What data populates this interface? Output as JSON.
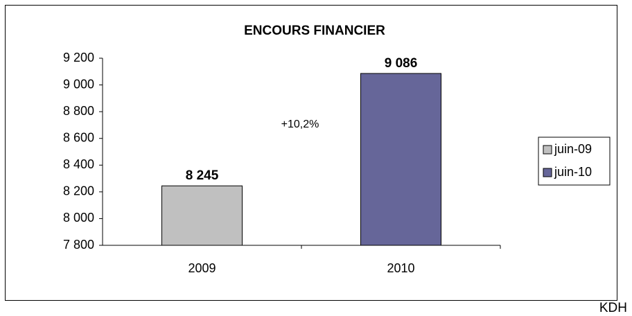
{
  "chart_data": {
    "type": "bar",
    "title": "ENCOURS FINANCIER",
    "categories": [
      "2009",
      "2010"
    ],
    "series": [
      {
        "name": "juin-09",
        "color": "#c0c0c0",
        "values": [
          8245,
          null
        ],
        "value_labels": [
          "8 245",
          null
        ]
      },
      {
        "name": "juin-10",
        "color": "#666699",
        "values": [
          null,
          9086
        ],
        "value_labels": [
          null,
          "9 086"
        ]
      }
    ],
    "ylim": [
      7800,
      9200
    ],
    "yticks": [
      {
        "value": 7800,
        "label": "7 800"
      },
      {
        "value": 8000,
        "label": "8 000"
      },
      {
        "value": 8200,
        "label": "8 200"
      },
      {
        "value": 8400,
        "label": "8 400"
      },
      {
        "value": 8600,
        "label": "8 600"
      },
      {
        "value": 8800,
        "label": "8 800"
      },
      {
        "value": 9000,
        "label": "9 000"
      },
      {
        "value": 9200,
        "label": "9 200"
      }
    ],
    "grid": false,
    "legend": "right",
    "annotations": [
      "+10,2%"
    ],
    "footer": "KDH"
  }
}
